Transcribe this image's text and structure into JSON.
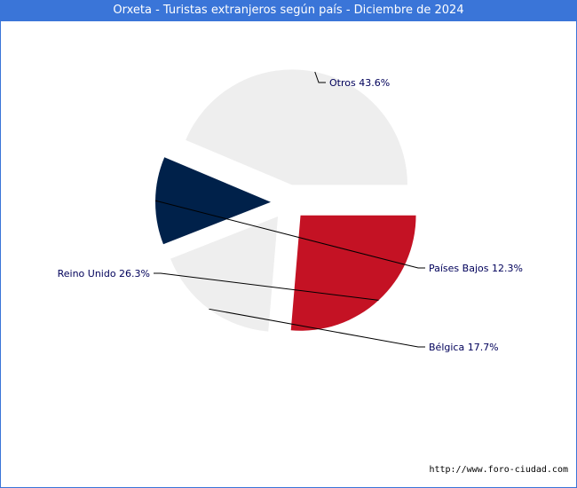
{
  "chart_data": {
    "type": "pie",
    "title": "Orxeta - Turistas extranjeros según país - Diciembre de 2024",
    "slices": [
      {
        "label": "Otros",
        "value": 43.6,
        "display": "Otros 43.6%",
        "color": "#eeeeee"
      },
      {
        "label": "Países Bajos",
        "value": 12.3,
        "display": "Países Bajos 12.3%",
        "color": "#00214a"
      },
      {
        "label": "Bélgica",
        "value": 17.7,
        "display": "Bélgica 17.7%",
        "color": "#eeeeee"
      },
      {
        "label": "Reino Unido",
        "value": 26.3,
        "display": "Reino Unido 26.3%",
        "color": "#c41224"
      }
    ],
    "label_color": "#00005a"
  },
  "footer": {
    "url": "http://www.foro-ciudad.com"
  },
  "colors": {
    "title_bar": "#3a75d8",
    "title_text": "#ffffff"
  }
}
